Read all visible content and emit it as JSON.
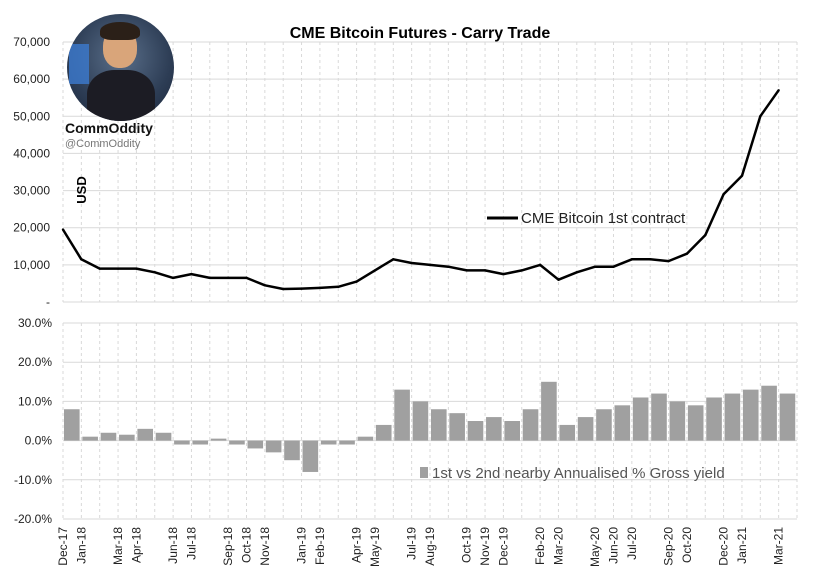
{
  "brand": {
    "name": "CommOddity",
    "handle": "@CommOddity"
  },
  "chart_data": [
    {
      "type": "line",
      "title": "CME Bitcoin Futures - Carry Trade",
      "ylabel": "USD",
      "ylim": [
        0,
        70000
      ],
      "y_ticks": [
        "-",
        "10,000",
        "20,000",
        "30,000",
        "40,000",
        "50,000",
        "60,000",
        "70,000"
      ],
      "grid": true,
      "legend_position": "middle-right",
      "series": [
        {
          "name": "CME Bitcoin 1st contract",
          "color": "#000000",
          "x": [
            "2017-12",
            "2018-01",
            "2018-02",
            "2018-03",
            "2018-04",
            "2018-05",
            "2018-06",
            "2018-07",
            "2018-08",
            "2018-09",
            "2018-10",
            "2018-11",
            "2018-12",
            "2019-01",
            "2019-02",
            "2019-03",
            "2019-04",
            "2019-05",
            "2019-06",
            "2019-07",
            "2019-08",
            "2019-09",
            "2019-10",
            "2019-11",
            "2019-12",
            "2020-01",
            "2020-02",
            "2020-03",
            "2020-04",
            "2020-05",
            "2020-06",
            "2020-07",
            "2020-08",
            "2020-09",
            "2020-10",
            "2020-11",
            "2020-12",
            "2021-01",
            "2021-02",
            "2021-03"
          ],
          "values": [
            19500,
            11500,
            9000,
            9000,
            9000,
            8000,
            6500,
            7500,
            6500,
            6500,
            6500,
            4500,
            3500,
            3600,
            3800,
            4100,
            5500,
            8500,
            11500,
            10500,
            10000,
            9500,
            8500,
            8500,
            7500,
            8500,
            10000,
            6000,
            8000,
            9500,
            9500,
            11500,
            11500,
            11000,
            13000,
            18000,
            29000,
            34000,
            50000,
            57000
          ]
        }
      ]
    },
    {
      "type": "bar",
      "ylim": [
        -20,
        30
      ],
      "y_ticks": [
        "-20.0%",
        "-10.0%",
        "0.0%",
        "10.0%",
        "20.0%",
        "30.0%"
      ],
      "grid": true,
      "legend_position": "bottom-right",
      "x_ticks": [
        "Dec-17",
        "Jan-18",
        "Mar-18",
        "Apr-18",
        "Jun-18",
        "Jul-18",
        "Sep-18",
        "Oct-18",
        "Nov-18",
        "Jan-19",
        "Feb-19",
        "Apr-19",
        "May-19",
        "Jul-19",
        "Aug-19",
        "Oct-19",
        "Nov-19",
        "Dec-19",
        "Feb-20",
        "Mar-20",
        "May-20",
        "Jun-20",
        "Jul-20",
        "Sep-20",
        "Oct-20",
        "Dec-20",
        "Jan-21",
        "Mar-21"
      ],
      "series": [
        {
          "name": "1st vs 2nd nearby Annualised % Gross yield",
          "color": "#a0a0a0",
          "x": [
            "2017-12",
            "2018-01",
            "2018-02",
            "2018-03",
            "2018-04",
            "2018-05",
            "2018-06",
            "2018-07",
            "2018-08",
            "2018-09",
            "2018-10",
            "2018-11",
            "2018-12",
            "2019-01",
            "2019-02",
            "2019-03",
            "2019-04",
            "2019-05",
            "2019-06",
            "2019-07",
            "2019-08",
            "2019-09",
            "2019-10",
            "2019-11",
            "2019-12",
            "2020-01",
            "2020-02",
            "2020-03",
            "2020-04",
            "2020-05",
            "2020-06",
            "2020-07",
            "2020-08",
            "2020-09",
            "2020-10",
            "2020-11",
            "2020-12",
            "2021-01",
            "2021-02",
            "2021-03"
          ],
          "values": [
            8,
            1,
            2,
            1.5,
            3,
            2,
            -1,
            -1,
            0.5,
            -1,
            -2,
            -3,
            -5,
            -8,
            -1,
            -1,
            1,
            4,
            13,
            10,
            8,
            7,
            5,
            6,
            5,
            8,
            15,
            4,
            6,
            8,
            9,
            11,
            12,
            10,
            9,
            11,
            12,
            13,
            14,
            12
          ]
        }
      ]
    }
  ]
}
